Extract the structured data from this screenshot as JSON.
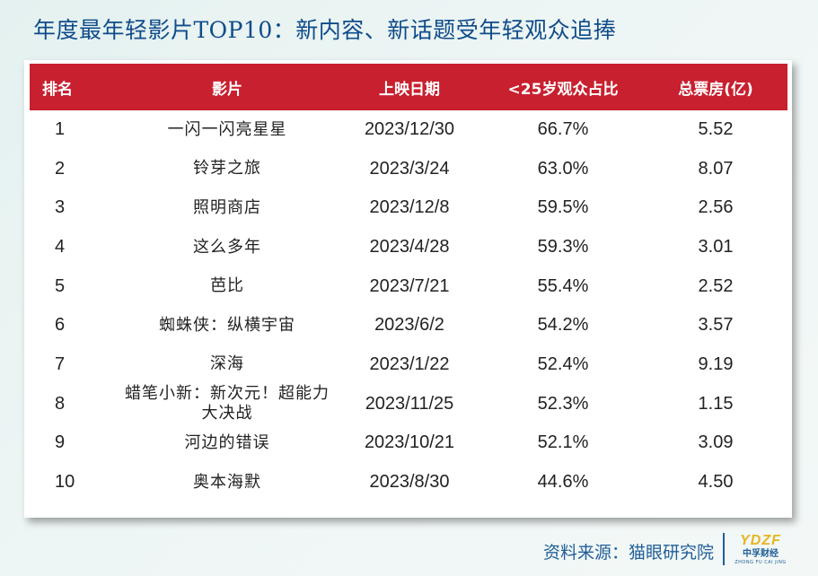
{
  "title": "年度最年轻影片TOP10：新内容、新话题受年轻观众追捧",
  "table": {
    "headers": [
      "排名",
      "影片",
      "上映日期",
      "<25岁观众占比",
      "总票房(亿)"
    ],
    "rows": [
      {
        "rank": "1",
        "film": "一闪一闪亮星星",
        "date": "2023/12/30",
        "share": "66.7%",
        "box": "5.52"
      },
      {
        "rank": "2",
        "film": "铃芽之旅",
        "date": "2023/3/24",
        "share": "63.0%",
        "box": "8.07"
      },
      {
        "rank": "3",
        "film": "照明商店",
        "date": "2023/12/8",
        "share": "59.5%",
        "box": "2.56"
      },
      {
        "rank": "4",
        "film": "这么多年",
        "date": "2023/4/28",
        "share": "59.3%",
        "box": "3.01"
      },
      {
        "rank": "5",
        "film": "芭比",
        "date": "2023/7/21",
        "share": "55.4%",
        "box": "2.52"
      },
      {
        "rank": "6",
        "film": "蜘蛛侠：纵横宇宙",
        "date": "2023/6/2",
        "share": "54.2%",
        "box": "3.57"
      },
      {
        "rank": "7",
        "film": "深海",
        "date": "2023/1/22",
        "share": "52.4%",
        "box": "9.19"
      },
      {
        "rank": "8",
        "film": "蜡笔小新：新次元！超能力大决战",
        "date": "2023/11/25",
        "share": "52.3%",
        "box": "1.15"
      },
      {
        "rank": "9",
        "film": "河边的错误",
        "date": "2023/10/21",
        "share": "52.1%",
        "box": "3.09"
      },
      {
        "rank": "10",
        "film": "奥本海默",
        "date": "2023/8/30",
        "share": "44.6%",
        "box": "4.50"
      }
    ]
  },
  "footer": {
    "source": "资料来源：猫眼研究院"
  },
  "logo": {
    "mark": "YDZF",
    "name_cn": "中孚财经",
    "name_py": "ZHONG FU CAI JING"
  }
}
